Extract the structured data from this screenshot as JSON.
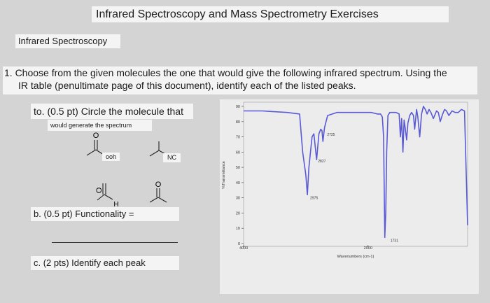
{
  "header": {
    "title": "Infrared Spectroscopy and Mass Spectrometry Exercises"
  },
  "section": {
    "label": "Infrared Spectroscopy"
  },
  "question": {
    "line1": "1. Choose from the given molecules the one that would give the following infrared spectrum. Using the",
    "line2": "IR table (penultimate page of this document), identify each of the listed peaks."
  },
  "part_a": {
    "label": "to. (0.5 pt) Circle the molecule that",
    "sub": "would generate the spectrum"
  },
  "molecules": {
    "m1_o": "O",
    "m1_group": "ooh",
    "m2_group": "NC",
    "m3_o": "O",
    "m3_h": "H",
    "m4_o": "O"
  },
  "part_b": {
    "label": "b. (0.5 pt) Functionality ="
  },
  "part_c": {
    "label": "c. (2 pts) Identify each peak"
  },
  "chart_data": {
    "type": "line",
    "ylabel": "%Transmittance",
    "xlabel": "Wavenumbers (cm-1)",
    "ylim": [
      0,
      90
    ],
    "xlim": [
      4000,
      400
    ],
    "yticks": [
      "90",
      "80",
      "70",
      "60",
      "50",
      "40",
      "30",
      "20",
      "10",
      "0"
    ],
    "xticks": [
      "4000",
      "2000"
    ],
    "peak_labels": [
      "2725",
      "2827",
      "2975",
      "1731"
    ],
    "series": [
      {
        "x": [
          4000,
          3700,
          3300,
          3100,
          3050,
          3000,
          2975,
          2950,
          2900,
          2870,
          2827,
          2790,
          2760,
          2740,
          2725,
          2700,
          2650,
          2500,
          2300,
          2100,
          1950,
          1850,
          1800,
          1770,
          1750,
          1731,
          1715,
          1700,
          1680,
          1650,
          1600,
          1550,
          1500,
          1480,
          1460,
          1440,
          1420,
          1400,
          1380,
          1360,
          1330,
          1300,
          1270,
          1250,
          1220,
          1200,
          1170,
          1140,
          1110,
          1080,
          1050,
          1020,
          990,
          950,
          900,
          870,
          840,
          800,
          770,
          740,
          700,
          650,
          600,
          550,
          500,
          450,
          400
        ],
        "y": [
          87,
          87,
          86,
          85,
          60,
          45,
          32,
          50,
          70,
          72,
          55,
          72,
          75,
          74,
          67,
          76,
          84,
          86,
          86,
          86,
          86,
          85,
          85,
          83,
          70,
          4,
          20,
          60,
          84,
          86,
          86,
          86,
          85,
          70,
          82,
          60,
          81,
          75,
          68,
          79,
          84,
          86,
          84,
          75,
          88,
          83,
          70,
          85,
          90,
          88,
          85,
          88,
          86,
          82,
          87,
          86,
          80,
          85,
          88,
          87,
          84,
          87,
          86,
          86,
          88,
          87,
          12
        ]
      }
    ]
  }
}
